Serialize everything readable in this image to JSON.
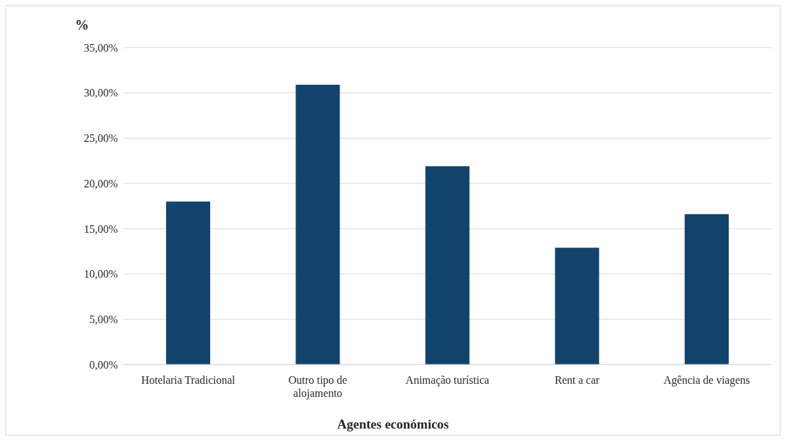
{
  "chart_data": {
    "type": "bar",
    "ylabel": "%",
    "xlabel": "Agentes económicos",
    "categories": [
      "Hotelaria Tradicional",
      "Outro tipo de alojamento",
      "Animação turística",
      "Rent a car",
      "Agência de viagens"
    ],
    "values": [
      18.0,
      30.9,
      21.9,
      12.9,
      16.6
    ],
    "color": "#12436d",
    "ylim": [
      0,
      35
    ],
    "yticks": [
      {
        "value": 0,
        "label": "0,00%"
      },
      {
        "value": 5,
        "label": "5,00%"
      },
      {
        "value": 10,
        "label": "10,00%"
      },
      {
        "value": 15,
        "label": "15,00%"
      },
      {
        "value": 20,
        "label": "20,00%"
      },
      {
        "value": 25,
        "label": "25,00%"
      },
      {
        "value": 30,
        "label": "30,00%"
      },
      {
        "value": 35,
        "label": "35,00%"
      }
    ],
    "grid": "y"
  }
}
